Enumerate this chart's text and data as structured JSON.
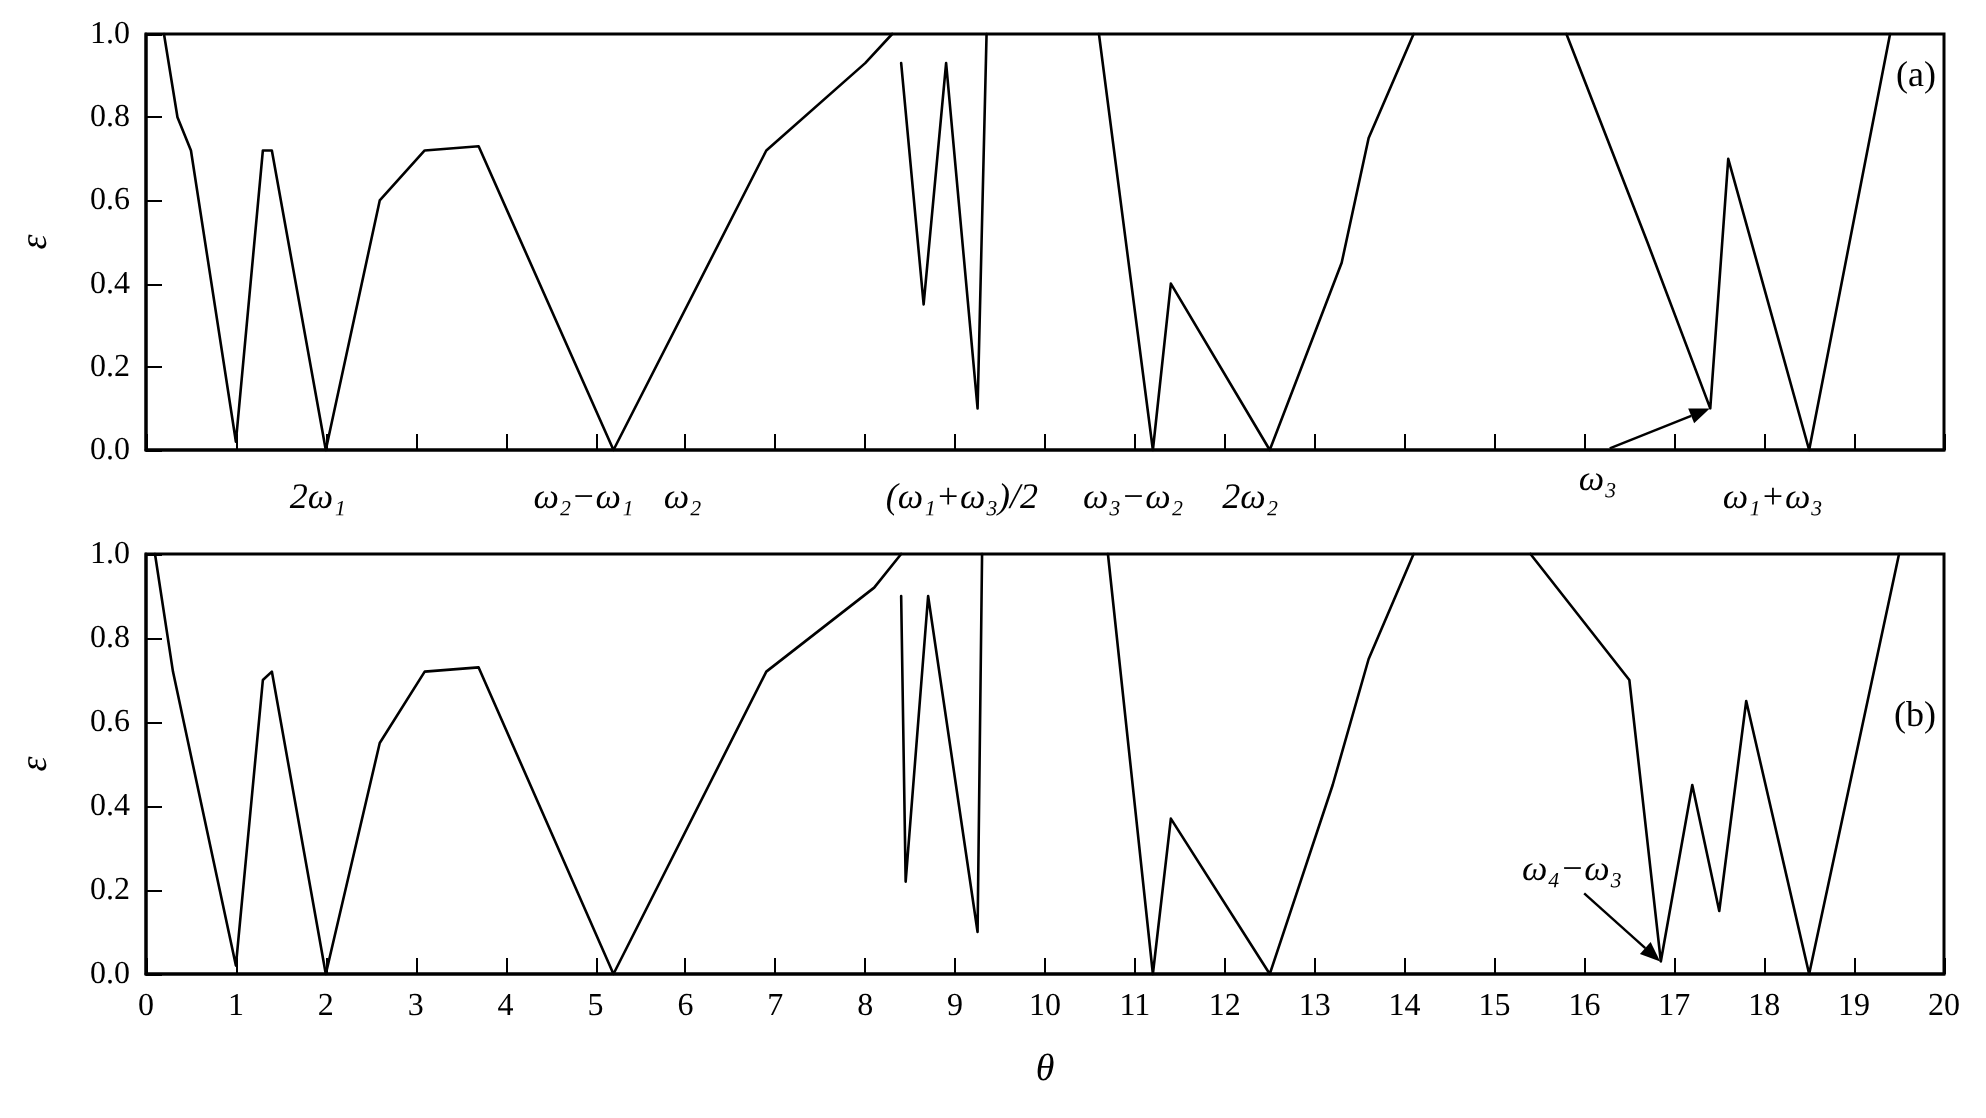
{
  "chart_data": [
    {
      "type": "line",
      "ylabel": "ε",
      "xlim": [
        0,
        20
      ],
      "ylim": [
        0,
        1
      ],
      "xticks": [
        0,
        1,
        2,
        3,
        4,
        5,
        6,
        7,
        8,
        9,
        10,
        11,
        12,
        13,
        14,
        15,
        16,
        17,
        18,
        19,
        20
      ],
      "yticks": [
        {
          "value": 0,
          "label": "0.0"
        },
        {
          "value": 0.2,
          "label": "0.2"
        },
        {
          "value": 0.4,
          "label": "0.4"
        },
        {
          "value": 0.6,
          "label": "0.6"
        },
        {
          "value": 0.8,
          "label": "0.8"
        },
        {
          "value": 1,
          "label": "1.0"
        }
      ],
      "tick_labels": "y",
      "grid": false,
      "line_style": "solid",
      "marker": "none",
      "series": [
        {
          "color": "#000000",
          "x": [
            0.2,
            0.35,
            0.5,
            1.0,
            1.3,
            1.4,
            2.0,
            2.6,
            3.1,
            3.7,
            5.2,
            6.9,
            8.0,
            8.3
          ],
          "values": [
            1.0,
            0.8,
            0.72,
            0.02,
            0.72,
            0.72,
            0.0,
            0.6,
            0.72,
            0.73,
            0.0,
            0.72,
            0.93,
            1.0
          ]
        },
        {
          "color": "#000000",
          "x": [
            8.4,
            8.65,
            8.9,
            9.25,
            9.35
          ],
          "values": [
            0.93,
            0.35,
            0.93,
            0.1,
            1.0
          ]
        },
        {
          "color": "#000000",
          "x": [
            10.6,
            11.2,
            11.4,
            12.5,
            13.3,
            13.6,
            14.1
          ],
          "values": [
            1.0,
            0.0,
            0.4,
            0.0,
            0.45,
            0.75,
            1.0
          ]
        },
        {
          "color": "#000000",
          "x": [
            15.8,
            16.7,
            17.4,
            17.6,
            18.5,
            19.4
          ],
          "values": [
            1.0,
            0.5,
            0.1,
            0.7,
            0.0,
            1.0
          ]
        }
      ],
      "annotations": [
        "(a)",
        "2ω₁",
        "ω₂−ω₁",
        "ω₂",
        "(ω₁+ω₃)/2",
        "ω₃−ω₂",
        "2ω₂",
        "ω₁+ω₃",
        {
          "text": "ω₃",
          "x": 17.4,
          "y": 0.1
        }
      ]
    },
    {
      "type": "line",
      "xlabel": "θ",
      "ylabel": "ε",
      "xlim": [
        0,
        20
      ],
      "ylim": [
        0,
        1
      ],
      "xticks": [
        0,
        1,
        2,
        3,
        4,
        5,
        6,
        7,
        8,
        9,
        10,
        11,
        12,
        13,
        14,
        15,
        16,
        17,
        18,
        19,
        20
      ],
      "yticks": [
        {
          "value": 0,
          "label": "0.0"
        },
        {
          "value": 0.2,
          "label": "0.2"
        },
        {
          "value": 0.4,
          "label": "0.4"
        },
        {
          "value": 0.6,
          "label": "0.6"
        },
        {
          "value": 0.8,
          "label": "0.8"
        },
        {
          "value": 1,
          "label": "1.0"
        }
      ],
      "grid": false,
      "line_style": "solid",
      "marker": "none",
      "series": [
        {
          "color": "#000000",
          "x": [
            0.1,
            0.3,
            1.0,
            1.3,
            1.4,
            2.0,
            2.6,
            3.1,
            3.7,
            5.2,
            6.9,
            8.1,
            8.4
          ],
          "values": [
            1.0,
            0.72,
            0.02,
            0.7,
            0.72,
            0.0,
            0.55,
            0.72,
            0.73,
            0.0,
            0.72,
            0.92,
            1.0
          ]
        },
        {
          "color": "#000000",
          "x": [
            8.4,
            8.45,
            8.7,
            9.25,
            9.3
          ],
          "values": [
            0.9,
            0.22,
            0.9,
            0.1,
            1.0
          ]
        },
        {
          "color": "#000000",
          "x": [
            10.7,
            11.2,
            11.4,
            12.5,
            13.2,
            13.6,
            14.1
          ],
          "values": [
            1.0,
            0.0,
            0.37,
            0.0,
            0.45,
            0.75,
            1.0
          ]
        },
        {
          "color": "#000000",
          "x": [
            15.4,
            16.5,
            16.85,
            17.2,
            17.5,
            17.8,
            18.5,
            19.5
          ],
          "values": [
            1.0,
            0.7,
            0.03,
            0.45,
            0.15,
            0.65,
            0.0,
            1.0
          ]
        }
      ],
      "annotations": [
        "(b)",
        {
          "text": "ω₄−ω₃",
          "x": 16.85,
          "y": 0.03
        }
      ]
    }
  ]
}
